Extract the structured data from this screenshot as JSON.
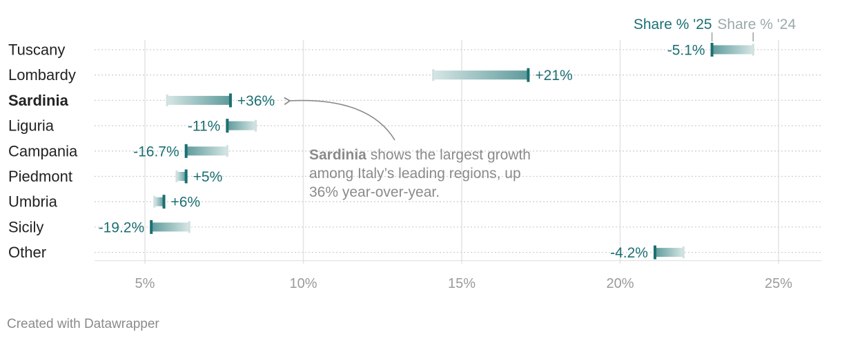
{
  "chart_data": {
    "type": "range-dot",
    "legend": {
      "current": "Share % '25",
      "previous": "Share % '24"
    },
    "x_ticks": [
      5,
      10,
      15,
      20,
      25
    ],
    "x_tick_labels": [
      "5%",
      "10%",
      "15%",
      "20%",
      "25%"
    ],
    "xlim": [
      3.4,
      26.4
    ],
    "grid": true,
    "highlight": "Sardinia",
    "rows": [
      {
        "region": "Tuscany",
        "share_24": 24.2,
        "share_25": 22.9,
        "change": "-5.1%"
      },
      {
        "region": "Lombardy",
        "share_24": 14.1,
        "share_25": 17.1,
        "change": "+21%"
      },
      {
        "region": "Sardinia",
        "share_24": 5.7,
        "share_25": 7.7,
        "change": "+36%"
      },
      {
        "region": "Liguria",
        "share_24": 8.5,
        "share_25": 7.6,
        "change": "-11%"
      },
      {
        "region": "Campania",
        "share_24": 7.6,
        "share_25": 6.3,
        "change": "-16.7%"
      },
      {
        "region": "Piedmont",
        "share_24": 6.0,
        "share_25": 6.3,
        "change": "+5%"
      },
      {
        "region": "Umbria",
        "share_24": 5.3,
        "share_25": 5.6,
        "change": "+6%"
      },
      {
        "region": "Sicily",
        "share_24": 6.4,
        "share_25": 5.2,
        "change": "-19.2%"
      },
      {
        "region": "Other",
        "share_24": 22.0,
        "share_25": 21.1,
        "change": "-4.2%"
      }
    ],
    "colors": {
      "current": "#1b6f72",
      "previous": "#cfe0df",
      "grid": "#e3e3e3"
    }
  },
  "annotation": {
    "highlight": "Sardinia",
    "text": " shows the largest growth among Italy’s leading regions, up 36% year-over-year."
  },
  "footer": "Created with Datawrapper"
}
